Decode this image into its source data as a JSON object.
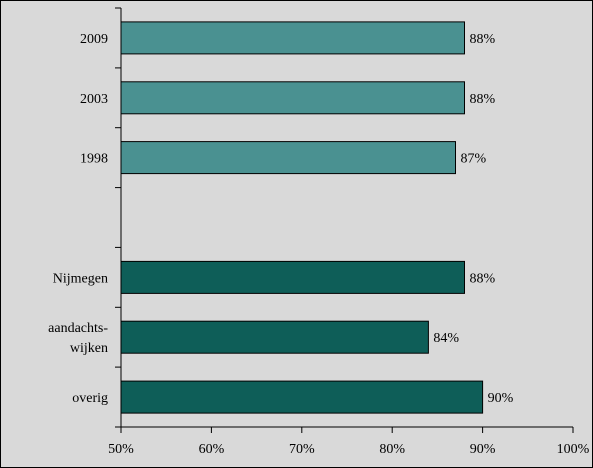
{
  "chart_data": {
    "type": "bar",
    "orientation": "horizontal",
    "categories": [
      "2009",
      "2003",
      "1998",
      "",
      "Nijmegen",
      "aandachts-\nwijken",
      "overig"
    ],
    "values": [
      88,
      88,
      87,
      null,
      88,
      84,
      90
    ],
    "data_labels": [
      "88%",
      "88%",
      "87%",
      "",
      "88%",
      "84%",
      "90%"
    ],
    "category_labels": [
      [
        "2009"
      ],
      [
        "2003"
      ],
      [
        "1998"
      ],
      [],
      [
        "Nijmegen"
      ],
      [
        "aandachts-",
        "wijken"
      ],
      [
        "overig"
      ]
    ],
    "xlim": [
      50,
      100
    ],
    "x_ticks": [
      50,
      60,
      70,
      80,
      90,
      100
    ],
    "x_tick_labels": [
      "50%",
      "60%",
      "70%",
      "80%",
      "90%",
      "100%"
    ],
    "title": "",
    "xlabel": "",
    "ylabel": "",
    "grid": false,
    "colors": {
      "background": "#d9d9d9",
      "group_years": "#4a9191",
      "group_areas": "#0e5e58",
      "bar_stroke": "#000000"
    },
    "bar_colors": [
      "#4a9191",
      "#4a9191",
      "#4a9191",
      null,
      "#0e5e58",
      "#0e5e58",
      "#0e5e58"
    ]
  }
}
